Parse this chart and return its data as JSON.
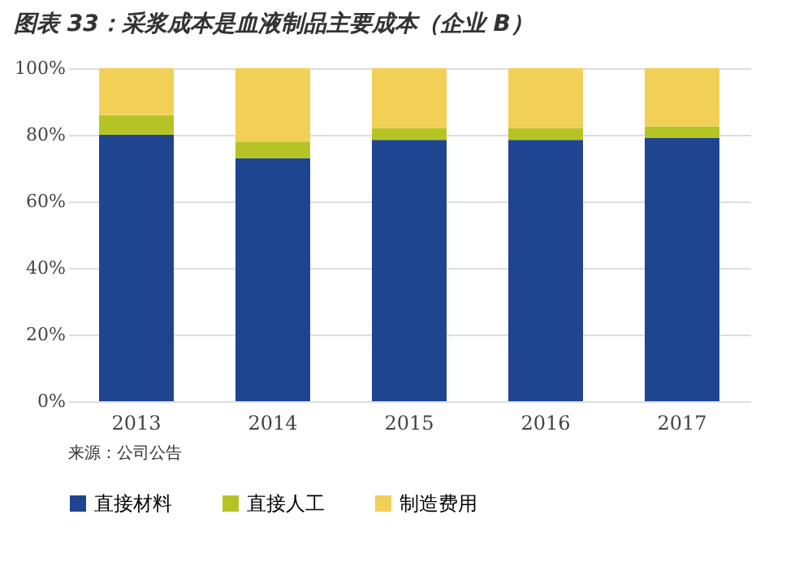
{
  "chart_data": {
    "type": "bar",
    "stacked": true,
    "title": "图表 33：采浆成本是血液制品主要成本（企业 B）",
    "categories": [
      "2013",
      "2014",
      "2015",
      "2016",
      "2017"
    ],
    "series": [
      {
        "name": "直接材料",
        "color": "#1f4591",
        "values": [
          80,
          73,
          78.5,
          78.5,
          79
        ]
      },
      {
        "name": "直接人工",
        "color": "#b5c424",
        "values": [
          6,
          5,
          3.5,
          3.5,
          3.5
        ]
      },
      {
        "name": "制造费用",
        "color": "#f2d058",
        "values": [
          14,
          22,
          18,
          18,
          17.5
        ]
      }
    ],
    "ylim": [
      0,
      100
    ],
    "yticks": [
      {
        "value": 0,
        "label": "0%"
      },
      {
        "value": 20,
        "label": "20%"
      },
      {
        "value": 40,
        "label": "40%"
      },
      {
        "value": 60,
        "label": "60%"
      },
      {
        "value": 80,
        "label": "80%"
      },
      {
        "value": 100,
        "label": "100%"
      }
    ],
    "grid": "y",
    "legend": "bottom",
    "annotations": [
      "来源：公司公告"
    ]
  }
}
